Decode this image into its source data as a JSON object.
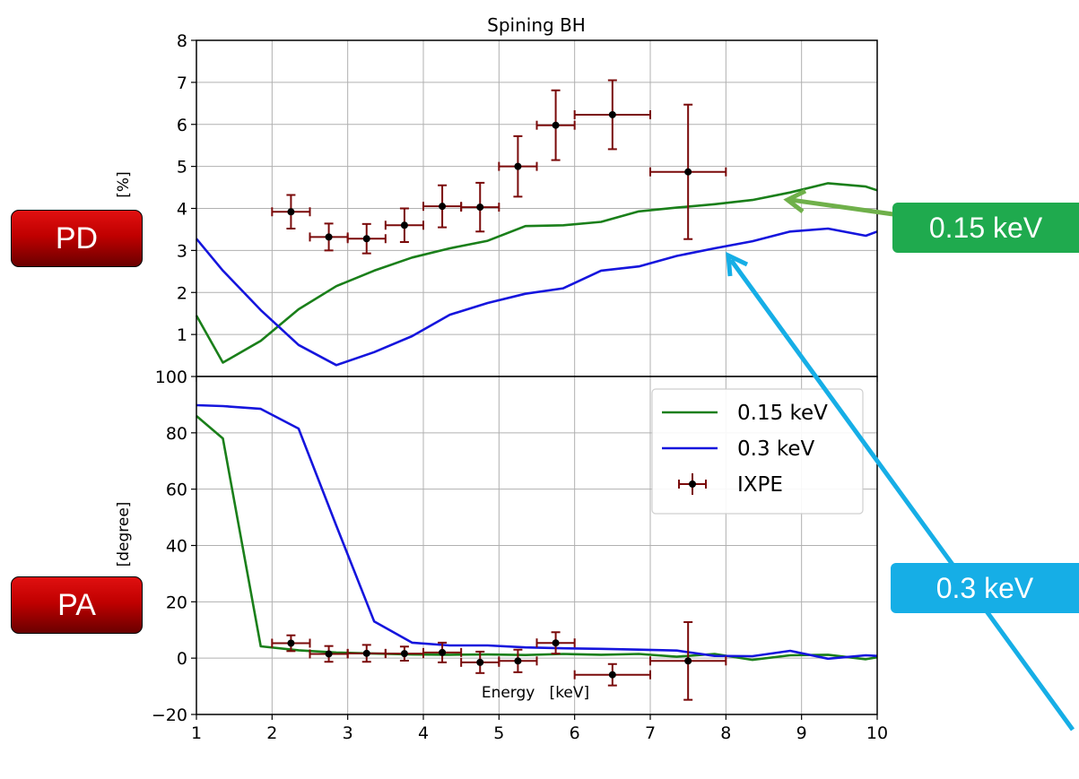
{
  "chart_data": {
    "type": "line",
    "title": "Spining BH",
    "xlabel": "Energy   [keV]",
    "xlim": [
      1,
      10
    ],
    "xticks": [
      1,
      2,
      3,
      4,
      5,
      6,
      7,
      8,
      9,
      10
    ],
    "grid": true,
    "panels": [
      {
        "id": "PD",
        "ylabel": "[%]",
        "ylim": [
          0,
          8
        ],
        "yticks": [
          1,
          2,
          3,
          4,
          5,
          6,
          7,
          8
        ],
        "series": [
          {
            "name": "0.15 keV",
            "color": "#1a7f1a",
            "x": [
              1.0,
              1.35,
              1.85,
              2.35,
              2.85,
              3.35,
              3.85,
              4.35,
              4.85,
              5.35,
              5.85,
              6.35,
              6.85,
              7.35,
              7.85,
              8.35,
              8.85,
              9.35,
              9.85,
              10.0
            ],
            "y": [
              1.45,
              0.33,
              0.85,
              1.6,
              2.15,
              2.52,
              2.83,
              3.05,
              3.23,
              3.58,
              3.6,
              3.68,
              3.93,
              4.02,
              4.1,
              4.2,
              4.38,
              4.6,
              4.52,
              4.43
            ]
          },
          {
            "name": "0.3 keV",
            "color": "#1515dd",
            "x": [
              1.0,
              1.35,
              1.85,
              2.35,
              2.85,
              3.35,
              3.85,
              4.35,
              4.85,
              5.35,
              5.85,
              6.35,
              6.85,
              7.35,
              7.85,
              8.35,
              8.85,
              9.35,
              9.85,
              10.0
            ],
            "y": [
              3.28,
              2.52,
              1.58,
              0.75,
              0.27,
              0.58,
              0.96,
              1.47,
              1.75,
              1.97,
              2.1,
              2.52,
              2.62,
              2.87,
              3.05,
              3.22,
              3.45,
              3.52,
              3.35,
              3.45
            ]
          },
          {
            "name": "IXPE",
            "color": "#7a0a0a",
            "kind": "errorbar",
            "x": [
              2.25,
              2.75,
              3.25,
              3.75,
              4.25,
              4.75,
              5.25,
              5.75,
              6.5,
              7.5
            ],
            "xerr": [
              0.25,
              0.25,
              0.25,
              0.25,
              0.25,
              0.25,
              0.25,
              0.25,
              0.5,
              0.5
            ],
            "y": [
              3.92,
              3.32,
              3.28,
              3.6,
              4.05,
              4.03,
              5.0,
              5.98,
              6.23,
              4.87
            ],
            "yerr": [
              0.4,
              0.32,
              0.35,
              0.4,
              0.5,
              0.58,
              0.72,
              0.83,
              0.82,
              1.6
            ]
          }
        ]
      },
      {
        "id": "PA",
        "ylabel": "[degree]",
        "ylim": [
          -20,
          100
        ],
        "yticks": [
          -20,
          0,
          20,
          40,
          60,
          80,
          100
        ],
        "legend": "upper-right",
        "series": [
          {
            "name": "0.15 keV",
            "color": "#1a7f1a",
            "x": [
              1.0,
              1.35,
              1.85,
              2.35,
              2.85,
              3.35,
              3.85,
              4.35,
              4.85,
              5.35,
              5.85,
              6.35,
              6.85,
              7.35,
              7.85,
              8.35,
              8.85,
              9.35,
              9.85,
              10.0
            ],
            "y": [
              86,
              78,
              4.2,
              2.8,
              2.0,
              1.6,
              1.3,
              1.2,
              1.3,
              1.1,
              1.5,
              1.2,
              1.5,
              0.5,
              1.5,
              -0.6,
              1.0,
              1.2,
              -0.4,
              0.3
            ]
          },
          {
            "name": "0.3 keV",
            "color": "#1515dd",
            "x": [
              1.0,
              1.35,
              1.85,
              2.35,
              2.85,
              3.35,
              3.85,
              4.35,
              4.85,
              5.35,
              5.85,
              6.35,
              6.85,
              7.35,
              7.85,
              8.35,
              8.85,
              9.35,
              9.85,
              10.0
            ],
            "y": [
              89.8,
              89.5,
              88.5,
              81.5,
              47,
              13,
              5.5,
              4.5,
              4.5,
              3.8,
              3.5,
              3.3,
              3.0,
              2.7,
              0.8,
              0.7,
              2.6,
              -0.2,
              1.0,
              0.8
            ]
          },
          {
            "name": "IXPE",
            "color": "#7a0a0a",
            "kind": "errorbar",
            "x": [
              2.25,
              2.75,
              3.25,
              3.75,
              4.25,
              4.75,
              5.25,
              5.75,
              6.5,
              7.5
            ],
            "xerr": [
              0.25,
              0.25,
              0.25,
              0.25,
              0.25,
              0.25,
              0.25,
              0.25,
              0.5,
              0.5
            ],
            "y": [
              5.3,
              1.5,
              1.7,
              1.6,
              2.0,
              -1.5,
              -1.0,
              5.4,
              -5.9,
              -1.0
            ],
            "yerr": [
              2.8,
              2.8,
              3.0,
              2.5,
              3.5,
              3.8,
              4.0,
              3.8,
              3.8,
              13.8
            ]
          }
        ]
      }
    ]
  },
  "badges": {
    "pd": "PD",
    "pa": "PA"
  },
  "callouts": {
    "green": {
      "label": "0.15 keV",
      "color": "#1faa4e"
    },
    "blue": {
      "label": "0.3 keV",
      "color": "#16aee6"
    }
  }
}
